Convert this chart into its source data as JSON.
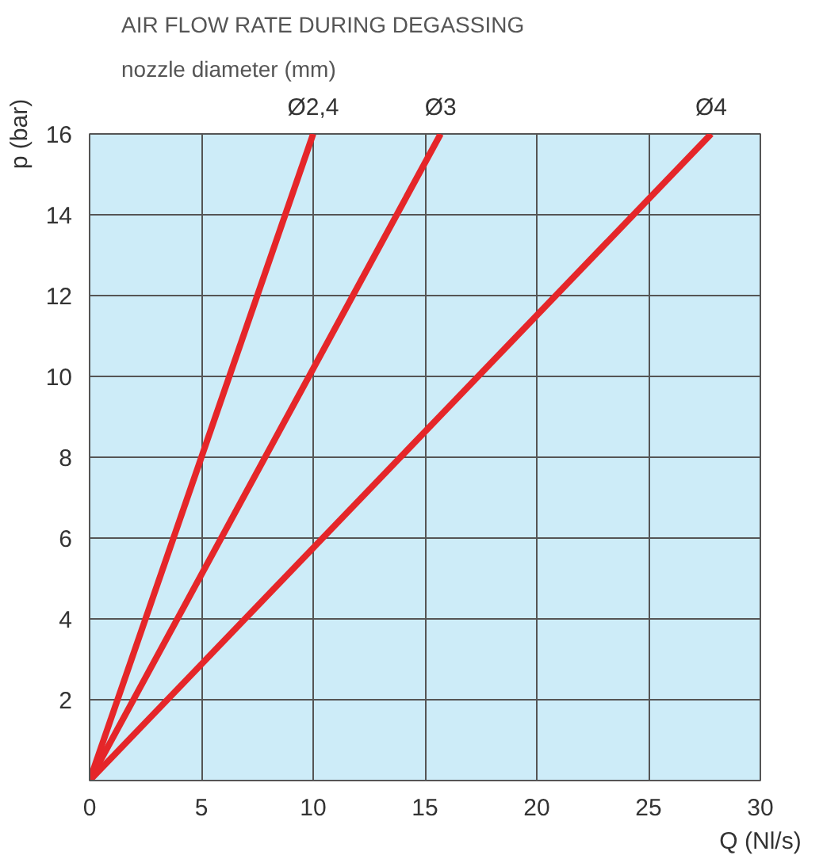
{
  "chart_data": {
    "type": "line",
    "title": "AIR FLOW RATE DURING DEGASSING",
    "subtitle": "nozzle diameter (mm)",
    "xlabel": "Q (Nl/s)",
    "ylabel": "p (bar)",
    "series": [
      {
        "name": "Ø2,4",
        "color": "#e52629",
        "x": [
          0,
          10
        ],
        "values": [
          0,
          16
        ]
      },
      {
        "name": "Ø3",
        "color": "#e52629",
        "x": [
          0,
          15.7
        ],
        "values": [
          0,
          16
        ]
      },
      {
        "name": "Ø4",
        "color": "#e52629",
        "x": [
          0,
          27.8
        ],
        "values": [
          0,
          16
        ]
      }
    ],
    "xlim": [
      0,
      30
    ],
    "xticks": [
      0,
      5,
      10,
      15,
      20,
      25,
      30
    ],
    "ylim": [
      0,
      16
    ],
    "yticks": [
      {
        "value": 0,
        "label": null
      },
      2,
      4,
      6,
      8,
      10,
      12,
      14,
      16
    ],
    "grid": true,
    "marker": "none",
    "line_style": "solid"
  }
}
